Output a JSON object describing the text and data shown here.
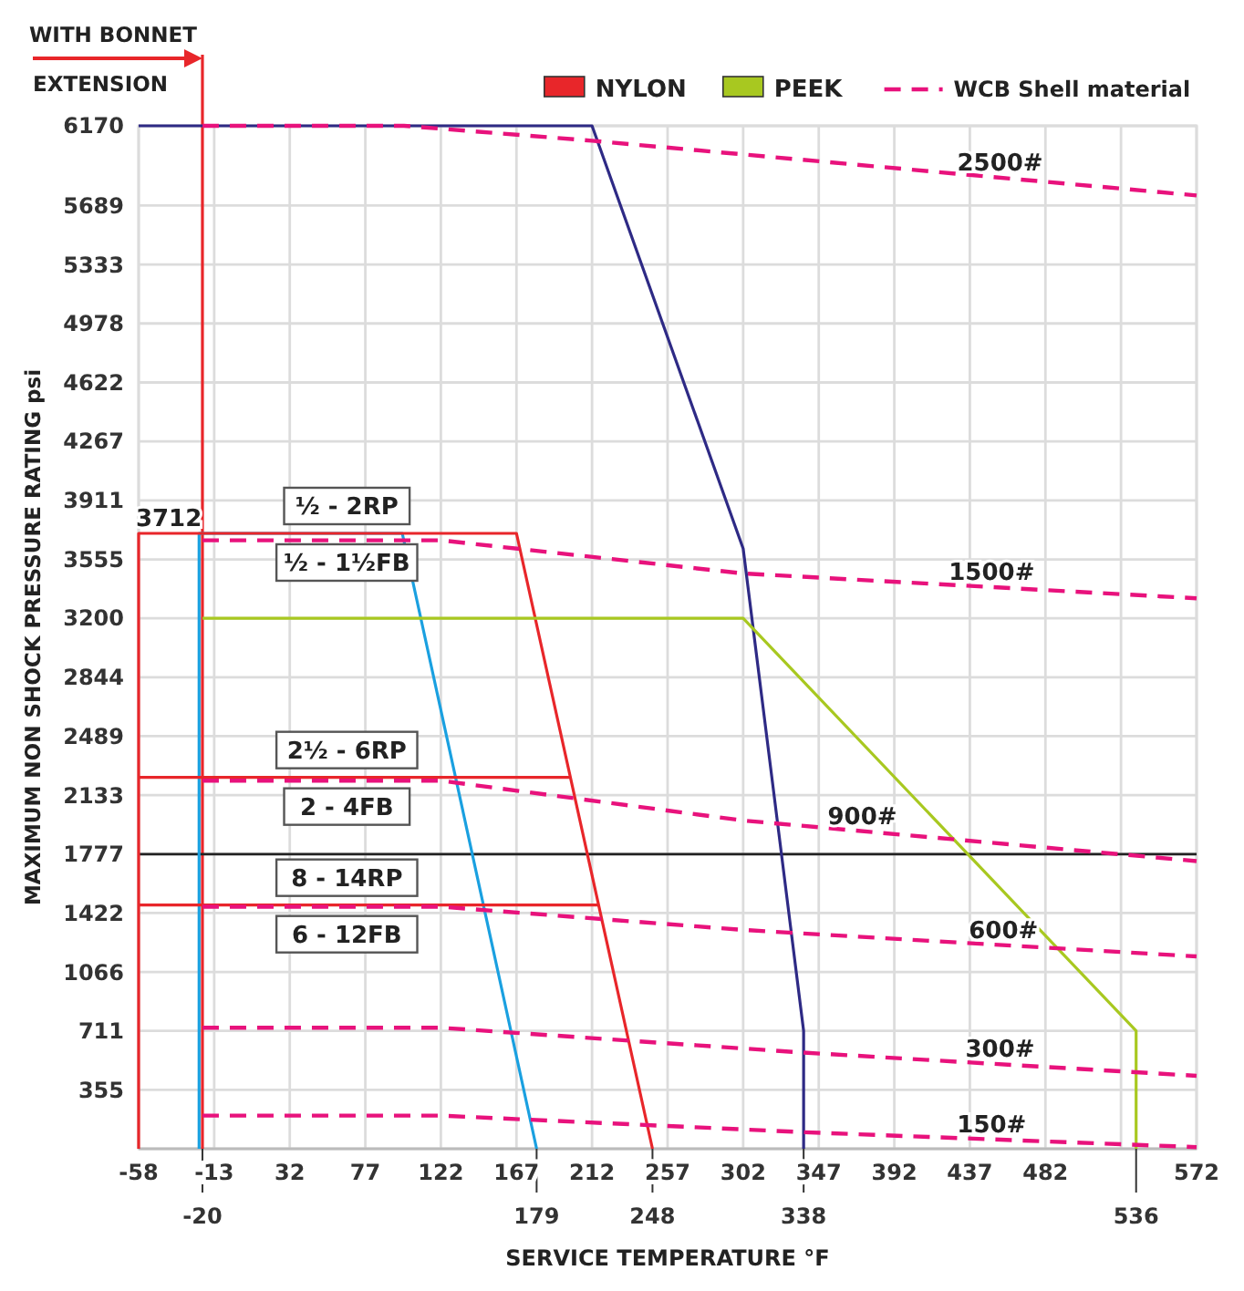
{
  "chart_data": {
    "type": "line",
    "xlabel": "SERVICE TEMPERATURE °F",
    "ylabel": "MAXIMUM NON SHOCK PRESSURE RATING psi",
    "xlim": [
      -58,
      572
    ],
    "ylim": [
      0,
      6170
    ],
    "xticks": [
      -58,
      -13,
      32,
      77,
      122,
      167,
      212,
      257,
      302,
      347,
      392,
      437,
      482,
      {
        "value": 527,
        "label": null
      },
      572
    ],
    "yticks": [
      355,
      711,
      1066,
      1422,
      1777,
      2133,
      2489,
      2844,
      3200,
      3555,
      3911,
      4267,
      4622,
      4978,
      5333,
      5689,
      6170
    ],
    "grid": true,
    "legend": "top",
    "series": [
      {
        "color": "#1aa0e0",
        "x": [
          -22,
          -22,
          99,
          179
        ],
        "values": [
          0,
          3712,
          3712,
          0
        ]
      },
      {
        "color": "#2e2a85",
        "x": [
          -58,
          212,
          302,
          338,
          338
        ],
        "values": [
          6170,
          6170,
          3620,
          711,
          0
        ]
      },
      {
        "name": "NYLON",
        "color": "#e8262a",
        "x": [
          -58,
          -58,
          167,
          248
        ],
        "values": [
          0,
          3712,
          3712,
          0
        ]
      },
      {
        "color": "#e8262a",
        "x": [
          -58,
          199
        ],
        "values": [
          2240,
          2240
        ]
      },
      {
        "color": "#e8262a",
        "x": [
          -58,
          216
        ],
        "values": [
          1470,
          1470
        ]
      },
      {
        "name": "PEEK",
        "color": "#a8c820",
        "x": [
          -20,
          302,
          536,
          536
        ],
        "values": [
          3200,
          3200,
          711,
          0
        ]
      },
      {
        "name": "WCB Shell material",
        "color": "#e8127c",
        "line_style": "dashed",
        "x": [
          -20,
          100,
          212,
          572
        ],
        "values": [
          6170,
          6170,
          6080,
          5750
        ]
      },
      {
        "color": "#e8127c",
        "line_style": "dashed",
        "x": [
          -20,
          122,
          302,
          572
        ],
        "values": [
          3670,
          3670,
          3470,
          3320
        ]
      },
      {
        "color": "#e8127c",
        "line_style": "dashed",
        "x": [
          -20,
          122,
          302,
          572
        ],
        "values": [
          2220,
          2220,
          1980,
          1735
        ]
      },
      {
        "color": "#e8127c",
        "line_style": "dashed",
        "x": [
          -20,
          122,
          302,
          572
        ],
        "values": [
          1460,
          1460,
          1320,
          1160
        ]
      },
      {
        "color": "#e8127c",
        "line_style": "dashed",
        "x": [
          -20,
          122,
          338,
          572
        ],
        "values": [
          730,
          730,
          580,
          440
        ]
      },
      {
        "color": "#e8127c",
        "line_style": "dashed",
        "x": [
          -20,
          122,
          338,
          572
        ],
        "values": [
          200,
          200,
          100,
          10
        ]
      }
    ],
    "ref_lines": [
      {
        "axis": "x",
        "value": -20,
        "label": "WITH BONNET EXTENSION",
        "color": "#e8262a"
      },
      {
        "axis": "y",
        "value": 1777,
        "color": "#222222"
      }
    ],
    "annotations": [
      {
        "text": "3712",
        "x": -40,
        "y": 3712
      },
      {
        "text": "½ - 2RP",
        "x": 66,
        "y": 3712
      },
      {
        "text": "½ - 1½FB",
        "x": 66,
        "y": 3712
      },
      {
        "text": "2½ - 6RP",
        "x": 66,
        "y": 2240
      },
      {
        "text": "2 - 4FB",
        "x": 66,
        "y": 2240
      },
      {
        "text": "8 - 14RP",
        "x": 66,
        "y": 1470
      },
      {
        "text": "6 - 12FB",
        "x": 66,
        "y": 1470
      },
      {
        "text": "2500#",
        "x": 455,
        "y": 5857
      },
      {
        "text": "1500#",
        "x": 450,
        "y": 3388
      },
      {
        "text": "900#",
        "x": 373,
        "y": 1916
      },
      {
        "text": "600#",
        "x": 457,
        "y": 1228
      },
      {
        "text": "300#",
        "x": 455,
        "y": 510
      },
      {
        "text": "150#",
        "x": 450,
        "y": 57
      },
      {
        "text": "-20",
        "x": -20,
        "y": 0
      },
      {
        "text": "179",
        "x": 179,
        "y": 0
      },
      {
        "text": "248",
        "x": 248,
        "y": 0
      },
      {
        "text": "338",
        "x": 338,
        "y": 0
      },
      {
        "text": "536",
        "x": 536,
        "y": 0
      }
    ]
  }
}
